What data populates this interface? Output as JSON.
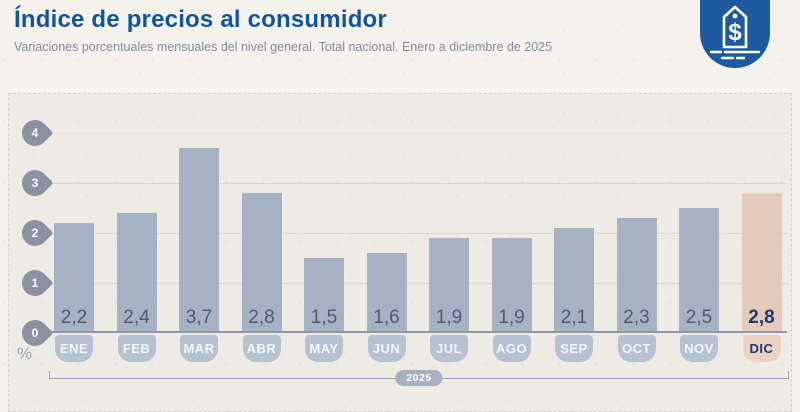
{
  "header": {
    "title": "Índice de precios al consumidor",
    "subtitle": "Variaciones porcentuales mensuales del nivel general. Total nacional. Enero a diciembre de 2025"
  },
  "badge": {
    "icon": "price-tag-dollar-icon",
    "symbol": "$",
    "background": "#1d5a9e"
  },
  "chart_data": {
    "type": "bar",
    "title": "Índice de precios al consumidor",
    "subtitle": "Variaciones porcentuales mensuales del nivel general. Total nacional. Enero a diciembre de 2025",
    "categories": [
      "ENE",
      "FEB",
      "MAR",
      "ABR",
      "MAY",
      "JUN",
      "JUL",
      "AGO",
      "SEP",
      "OCT",
      "NOV",
      "DIC"
    ],
    "values": [
      2.2,
      2.4,
      3.7,
      2.8,
      1.5,
      1.6,
      1.9,
      1.9,
      2.1,
      2.3,
      2.5,
      2.8
    ],
    "value_labels": [
      "2,2",
      "2,4",
      "3,7",
      "2,8",
      "1,5",
      "1,6",
      "1,9",
      "1,9",
      "2,1",
      "2,3",
      "2,5",
      "2,8"
    ],
    "highlight_index": 11,
    "ylabel": "%",
    "ylim": [
      0,
      4
    ],
    "yticks": [
      4,
      3,
      2,
      1,
      0
    ],
    "x_group_label": "2025",
    "grid": true,
    "legend": false,
    "bar_color": "#a6b2c4",
    "highlight_bar_color": "#e5cabb",
    "label_pill_color": "#b6c1d2",
    "highlight_pill_color": "#ecd2c2"
  },
  "colors": {
    "background": "#f5f2eb",
    "panel": "#eeebe4",
    "title": "#11559f",
    "subtitle": "#7e8ca1",
    "axis": "#8d98ab",
    "pin": "#8a92a2",
    "value_text": "#4d5a79",
    "highlight_text": "#1e3a6d"
  }
}
